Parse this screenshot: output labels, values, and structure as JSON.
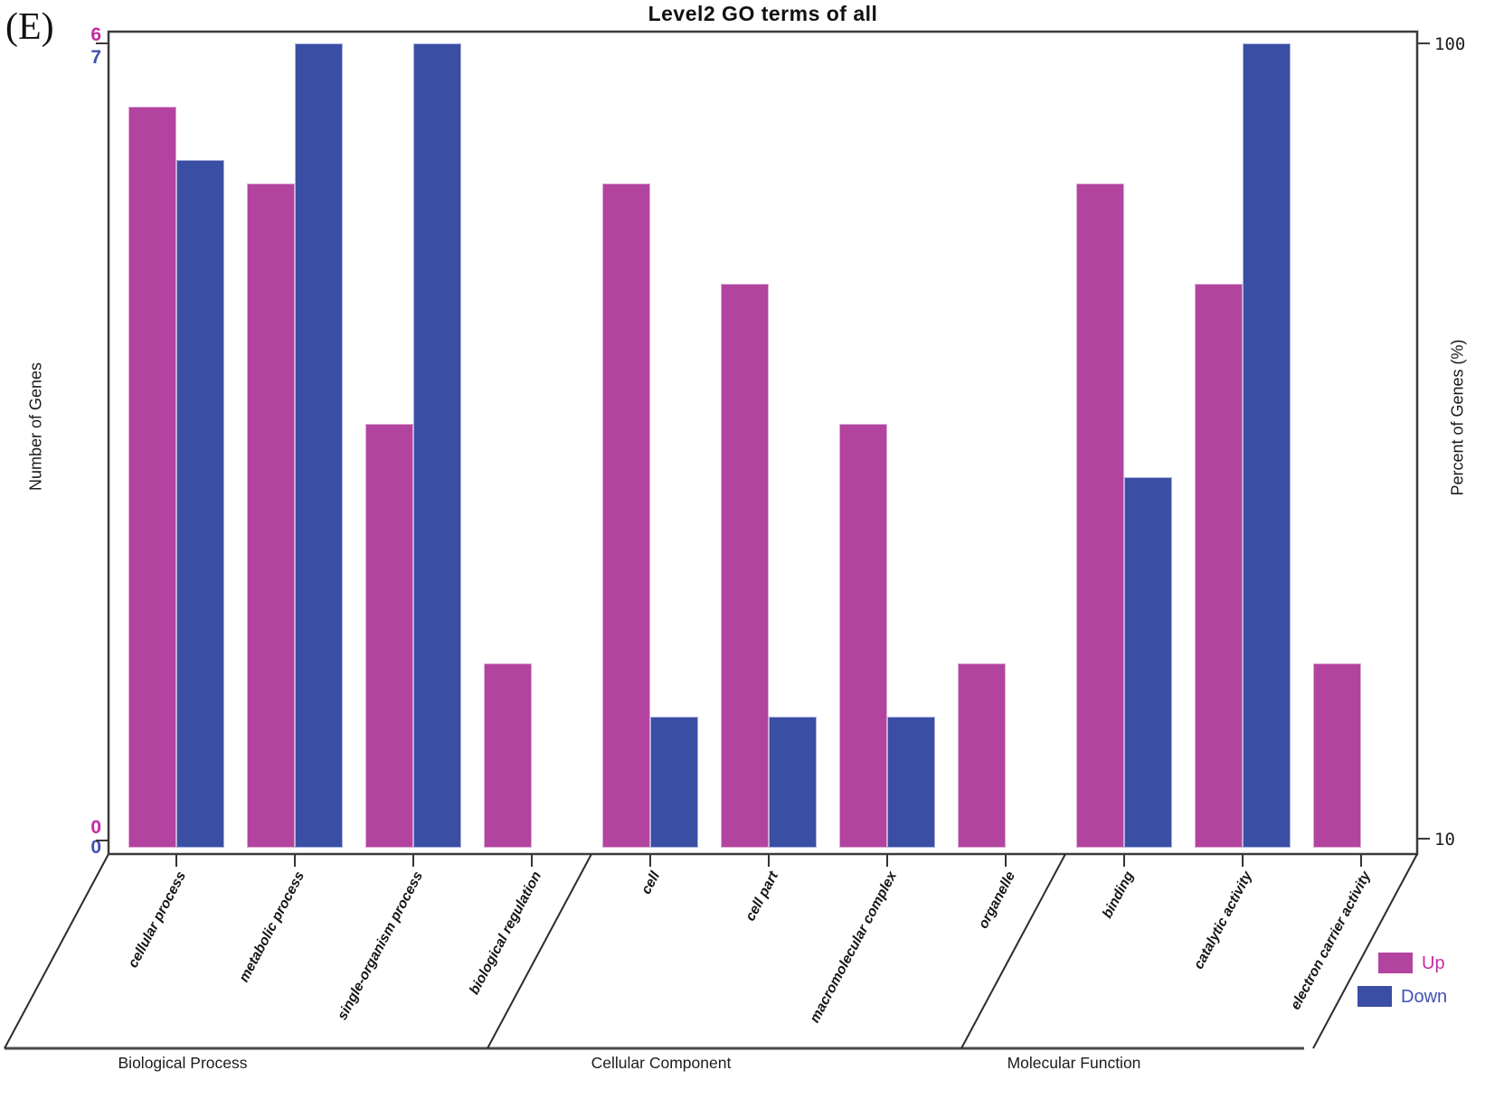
{
  "chart_data": {
    "type": "bar",
    "title": "Level2 GO terms of all",
    "panel_label": "(E)",
    "ylabel_left": "Number of Genes",
    "ylabel_right": "Percent of Genes (%)",
    "axis_scale": "log",
    "left_axis_ticks": {
      "up_max": "6",
      "down_max": "7",
      "up_min": "0",
      "down_min": "0"
    },
    "right_axis_ticks": {
      "top": "100",
      "bottom": "10"
    },
    "totals": {
      "up": 6,
      "down": 7
    },
    "right_axis_range_percent": [
      10,
      100
    ],
    "legend": [
      {
        "name": "Up",
        "color": "#b2449f",
        "edge": "#dcaad4",
        "text_color": "#c22ca6"
      },
      {
        "name": "Down",
        "color": "#3a4ea4",
        "edge": "#aab2de",
        "text_color": "#4250b4"
      }
    ],
    "groups": [
      "Biological Process",
      "Cellular Component",
      "Molecular Function"
    ],
    "categories": [
      {
        "label": "cellular process",
        "group": 0,
        "up": 5,
        "down": 5
      },
      {
        "label": "metabolic process",
        "group": 0,
        "up": 4,
        "down": 7
      },
      {
        "label": "single-organism process",
        "group": 0,
        "up": 2,
        "down": 7
      },
      {
        "label": "biological regulation",
        "group": 0,
        "up": 1,
        "down": 0
      },
      {
        "label": "cell",
        "group": 1,
        "up": 4,
        "down": 1
      },
      {
        "label": "cell part",
        "group": 1,
        "up": 3,
        "down": 1
      },
      {
        "label": "macromolecular complex",
        "group": 1,
        "up": 2,
        "down": 1
      },
      {
        "label": "organelle",
        "group": 1,
        "up": 1,
        "down": 0
      },
      {
        "label": "binding",
        "group": 2,
        "up": 4,
        "down": 2
      },
      {
        "label": "catalytic activity",
        "group": 2,
        "up": 3,
        "down": 7
      },
      {
        "label": "electron carrier activity",
        "group": 2,
        "up": 1,
        "down": 0
      }
    ]
  }
}
